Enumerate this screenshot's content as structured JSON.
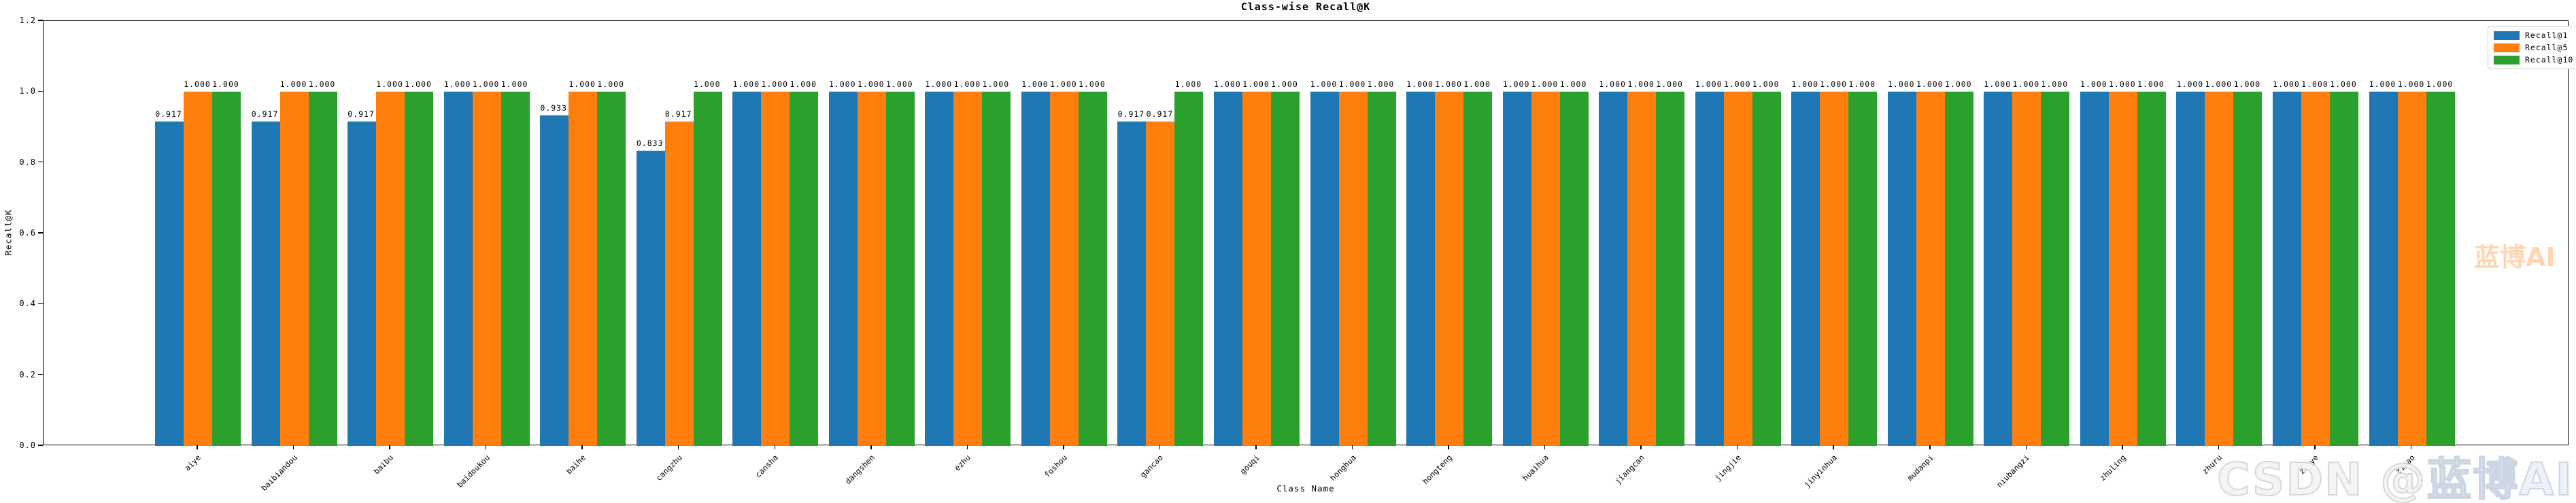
{
  "title": "Class-wise Recall@K",
  "chart_data": {
    "type": "bar",
    "title": "Class-wise Recall@K",
    "xlabel": "Class Name",
    "ylabel": "Recall@K",
    "ylim": [
      0,
      1.2
    ],
    "yticks": [
      "0.0",
      "0.2",
      "0.4",
      "0.6",
      "0.8",
      "1.0",
      "1.2"
    ],
    "grid": false,
    "legend_position": "upper right outside",
    "bar_value_label_decimals": 3,
    "categories": [
      "aiye",
      "baibiandou",
      "baibu",
      "baidoukou",
      "baihe",
      "cangzhu",
      "cansha",
      "dangshen",
      "ezhu",
      "foshou",
      "gancao",
      "gouqi",
      "honghua",
      "hongteng",
      "huaihua",
      "jiangcan",
      "jingjie",
      "jinyinhua",
      "mudanpi",
      "niubangzi",
      "zhuling",
      "zhuru",
      "zhuye",
      "zicao"
    ],
    "series": [
      {
        "name": "Recall@1",
        "color": "#1f77b4",
        "values": [
          0.917,
          0.917,
          0.917,
          1.0,
          0.933,
          0.833,
          1.0,
          1.0,
          1.0,
          1.0,
          0.917,
          1.0,
          1.0,
          1.0,
          1.0,
          1.0,
          1.0,
          1.0,
          1.0,
          1.0,
          1.0,
          1.0,
          1.0,
          1.0
        ]
      },
      {
        "name": "Recall@5",
        "color": "#ff7f0e",
        "values": [
          1.0,
          1.0,
          1.0,
          1.0,
          1.0,
          0.917,
          1.0,
          1.0,
          1.0,
          1.0,
          0.917,
          1.0,
          1.0,
          1.0,
          1.0,
          1.0,
          1.0,
          1.0,
          1.0,
          1.0,
          1.0,
          1.0,
          1.0,
          1.0
        ]
      },
      {
        "name": "Recall@10",
        "color": "#2ca02c",
        "values": [
          1.0,
          1.0,
          1.0,
          1.0,
          1.0,
          1.0,
          1.0,
          1.0,
          1.0,
          1.0,
          1.0,
          1.0,
          1.0,
          1.0,
          1.0,
          1.0,
          1.0,
          1.0,
          1.0,
          1.0,
          1.0,
          1.0,
          1.0,
          1.0
        ]
      }
    ]
  },
  "legend": {
    "items": [
      "Recall@1",
      "Recall@5",
      "Recall@10"
    ]
  },
  "watermarks": {
    "side_text": "蓝博AI",
    "bottom_prefix": "CSDN @",
    "bottom_brand": "蓝博AI"
  }
}
